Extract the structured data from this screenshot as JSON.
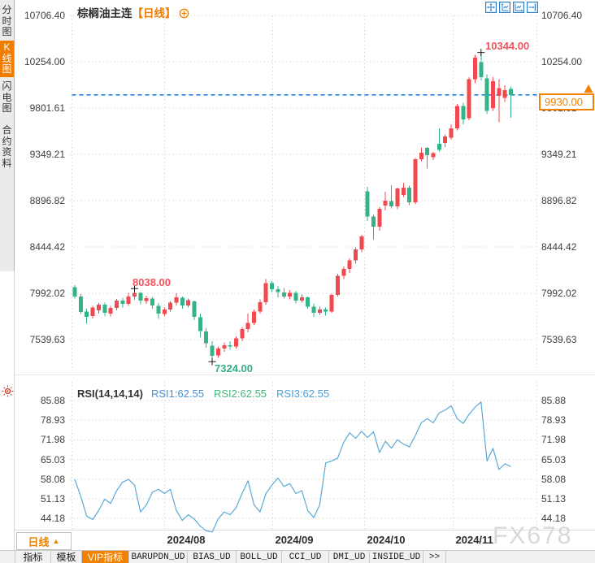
{
  "title": {
    "symbol": "棕榈油主连",
    "period": "【日线】"
  },
  "sidebar": {
    "items": [
      {
        "label": "分时图",
        "selected": false
      },
      {
        "label": "K线图",
        "selected": true
      },
      {
        "label": "闪电图",
        "selected": false
      },
      {
        "label": "合约资料",
        "selected": false
      }
    ]
  },
  "toolbar_icons": [
    "move-icon",
    "zoom-vertical-icon",
    "zoom-horizontal-icon",
    "shift-right-icon"
  ],
  "colors": {
    "up": "#f1494f",
    "down": "#35b386",
    "dashed_line": "#1b7ce0",
    "accent_orange": "#f28100",
    "grid": "#d9d9d9",
    "rsi_line": "#5aa9d6",
    "label": "#3e3e3e",
    "high_label": "#f4525e",
    "low_label": "#35ae88",
    "watermark": "#d6d9dc"
  },
  "current_price": {
    "label": "9930.00"
  },
  "annotations": {
    "high": {
      "label": "10344.00"
    },
    "swing_high": {
      "label": "8038.00"
    },
    "low": {
      "label": "7324.00"
    }
  },
  "rsi_header": {
    "name": "RSI(14,14,14)",
    "rsi1": "RSI1:62.55",
    "rsi2": "RSI2:62.55",
    "rsi3": "RSI3:62.55"
  },
  "x_axis": {
    "dates": [
      "2024/08",
      "2024/09",
      "2024/10",
      "2024/11"
    ],
    "period_label": "日线",
    "period_arrow": "▲"
  },
  "tabs": [
    {
      "label": "指标",
      "selected": false,
      "mono": false
    },
    {
      "label": "模板",
      "selected": false,
      "mono": false
    },
    {
      "label": "VIP指标",
      "selected": true,
      "mono": false
    },
    {
      "label": "BARUPDN_UD",
      "selected": false,
      "mono": true
    },
    {
      "label": "BIAS_UD",
      "selected": false,
      "mono": true
    },
    {
      "label": "BOLL_UD",
      "selected": false,
      "mono": true
    },
    {
      "label": "CCI_UD",
      "selected": false,
      "mono": true
    },
    {
      "label": "DMI_UD",
      "selected": false,
      "mono": true
    },
    {
      "label": "INSIDE_UD",
      "selected": false,
      "mono": true
    },
    {
      "label": ">>",
      "selected": false,
      "mono": true
    }
  ],
  "watermark": "FX678",
  "chart_data": {
    "type": "candlestick+rsi",
    "title": "棕榈油主连 日线",
    "price_axis_ticks": [
      10706.4,
      10254.0,
      9801.61,
      9349.21,
      8896.82,
      8444.42,
      7992.02,
      7539.63
    ],
    "rsi_axis_ticks": [
      85.88,
      78.93,
      71.98,
      65.03,
      58.08,
      51.13,
      44.18
    ],
    "x_dates": [
      "2024/08",
      "2024/09",
      "2024/10",
      "2024/11"
    ],
    "current_price": 9930.0,
    "high_annotation": {
      "value": 10344.0,
      "index": 68
    },
    "swing_high_annotation": {
      "value": 8038.0,
      "index": 10
    },
    "low_annotation": {
      "value": 7324.0,
      "index": 23
    },
    "rsi_display": {
      "periods": "14,14,14",
      "rsi1": 62.55,
      "rsi2": 62.55,
      "rsi3": 62.55
    },
    "ohlc": [
      [
        8050,
        8070,
        7940,
        7960
      ],
      [
        7960,
        7985,
        7790,
        7810
      ],
      [
        7815,
        7840,
        7695,
        7760
      ],
      [
        7770,
        7870,
        7745,
        7855
      ],
      [
        7825,
        7895,
        7795,
        7880
      ],
      [
        7880,
        7900,
        7770,
        7800
      ],
      [
        7795,
        7870,
        7765,
        7850
      ],
      [
        7850,
        7935,
        7825,
        7920
      ],
      [
        7920,
        7950,
        7855,
        7890
      ],
      [
        7890,
        7995,
        7870,
        7960
      ],
      [
        7960,
        8038,
        7930,
        7995
      ],
      [
        7995,
        8005,
        7885,
        7920
      ],
      [
        7915,
        7968,
        7888,
        7945
      ],
      [
        7942,
        7955,
        7840,
        7872
      ],
      [
        7868,
        7895,
        7742,
        7792
      ],
      [
        7790,
        7852,
        7770,
        7832
      ],
      [
        7832,
        7918,
        7812,
        7902
      ],
      [
        7902,
        7992,
        7872,
        7952
      ],
      [
        7948,
        7962,
        7840,
        7872
      ],
      [
        7872,
        7942,
        7852,
        7926
      ],
      [
        7912,
        7922,
        7732,
        7762
      ],
      [
        7756,
        7792,
        7562,
        7622
      ],
      [
        7618,
        7652,
        7462,
        7502
      ],
      [
        7482,
        7522,
        7324,
        7382
      ],
      [
        7386,
        7472,
        7362,
        7452
      ],
      [
        7452,
        7512,
        7422,
        7486
      ],
      [
        7486,
        7522,
        7442,
        7472
      ],
      [
        7472,
        7572,
        7452,
        7552
      ],
      [
        7552,
        7662,
        7522,
        7642
      ],
      [
        7642,
        7792,
        7612,
        7702
      ],
      [
        7702,
        7832,
        7682,
        7812
      ],
      [
        7812,
        7932,
        7792,
        7906
      ],
      [
        7906,
        8132,
        7882,
        8092
      ],
      [
        8092,
        8112,
        8002,
        8032
      ],
      [
        8032,
        8062,
        7952,
        8002
      ],
      [
        7998,
        8042,
        7942,
        7962
      ],
      [
        7962,
        8022,
        7932,
        7996
      ],
      [
        7996,
        8012,
        7892,
        7922
      ],
      [
        7922,
        7982,
        7902,
        7952
      ],
      [
        7952,
        7962,
        7842,
        7862
      ],
      [
        7862,
        7892,
        7762,
        7802
      ],
      [
        7802,
        7862,
        7782,
        7832
      ],
      [
        7832,
        7852,
        7772,
        7812
      ],
      [
        7812,
        7992,
        7802,
        7976
      ],
      [
        7976,
        8182,
        7962,
        8162
      ],
      [
        8162,
        8252,
        8132,
        8232
      ],
      [
        8232,
        8332,
        8192,
        8312
      ],
      [
        8312,
        8442,
        8282,
        8422
      ],
      [
        8422,
        8562,
        8392,
        8546
      ],
      [
        8990,
        9032,
        8700,
        8742
      ],
      [
        8742,
        8762,
        8516,
        8642
      ],
      [
        8642,
        8832,
        8602,
        8818
      ],
      [
        8848,
        8984,
        8802,
        8896
      ],
      [
        8892,
        9048,
        8822,
        8842
      ],
      [
        8842,
        9022,
        8812,
        9016
      ],
      [
        8952,
        9072,
        8932,
        9022
      ],
      [
        9022,
        9042,
        8852,
        8882
      ],
      [
        8882,
        9312,
        8862,
        9302
      ],
      [
        9302,
        9416,
        9282,
        9366
      ],
      [
        9412,
        9422,
        9212,
        9342
      ],
      [
        9322,
        9372,
        9292,
        9362
      ],
      [
        9452,
        9602,
        9372,
        9392
      ],
      [
        9462,
        9542,
        9422,
        9522
      ],
      [
        9512,
        9642,
        9492,
        9602
      ],
      [
        9602,
        9842,
        9582,
        9822
      ],
      [
        9822,
        9852,
        9642,
        9692
      ],
      [
        9702,
        10102,
        9682,
        10082
      ],
      [
        10082,
        10322,
        10042,
        10292
      ],
      [
        10252,
        10344,
        10072,
        10102
      ],
      [
        10092,
        10132,
        9742,
        9772
      ],
      [
        9802,
        10102,
        9772,
        10062
      ],
      [
        9922,
        10082,
        9662,
        9996
      ],
      [
        9902,
        10022,
        9862,
        9976
      ],
      [
        9990,
        10010,
        9705,
        9930
      ]
    ],
    "rsi": [
      58,
      52,
      45,
      43.8,
      47,
      51,
      49.5,
      54,
      57,
      58,
      56,
      46.5,
      49,
      53.5,
      54.5,
      53,
      54.5,
      47,
      43.5,
      45.5,
      44,
      41.5,
      39.8,
      39.4,
      44,
      46.5,
      45.5,
      48,
      53,
      57.5,
      49,
      46.5,
      53,
      56,
      58.5,
      55.5,
      56.5,
      53,
      54,
      47,
      44.5,
      49,
      63.8,
      64.5,
      65.5,
      71,
      74.5,
      72.5,
      75,
      72.8,
      74.8,
      67.5,
      71.5,
      69,
      72,
      70.5,
      69.5,
      73.5,
      78,
      79.5,
      78,
      81.5,
      82.5,
      84,
      79.5,
      77.8,
      81,
      83.5,
      85.4,
      64.5,
      69,
      61.5,
      63.5,
      62.55
    ]
  }
}
